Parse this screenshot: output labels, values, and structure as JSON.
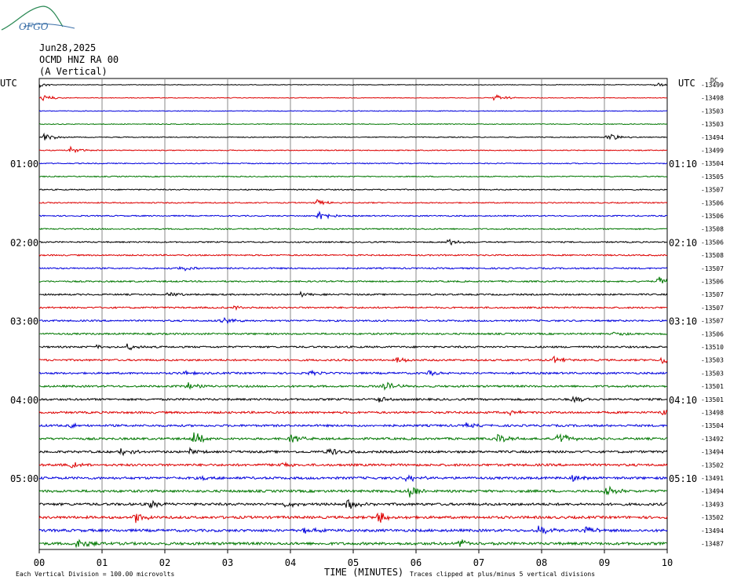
{
  "header": {
    "logo_text": "OFGO",
    "date": "Jun28,2025",
    "station": "OCMD HNZ RA 00",
    "component": "(A Vertical)"
  },
  "utc_left": "UTC",
  "utc_right": "UTC",
  "dc_label": "DC",
  "colors": {
    "black": "#000000",
    "red": "#dd0000",
    "blue": "#0000dd",
    "green": "#007700",
    "grid": "#888888",
    "logo": "#3a6fa8",
    "logo_swoosh": "#2e8b57"
  },
  "chart_data": {
    "type": "line",
    "title": "",
    "xlabel": "TIME (MINUTES)",
    "ylabel": "",
    "x_ticks": [
      "00",
      "01",
      "02",
      "03",
      "04",
      "05",
      "06",
      "07",
      "08",
      "09",
      "10"
    ],
    "xlim": [
      0,
      10
    ],
    "grid": true,
    "color_cycle": [
      "black",
      "red",
      "blue",
      "green"
    ],
    "left_time_labels": [
      {
        "row": 6,
        "label": "01:00"
      },
      {
        "row": 12,
        "label": "02:00"
      },
      {
        "row": 18,
        "label": "03:00"
      },
      {
        "row": 24,
        "label": "04:00"
      },
      {
        "row": 30,
        "label": "05:00"
      }
    ],
    "right_time_labels": [
      {
        "row": 6,
        "label": "01:10"
      },
      {
        "row": 12,
        "label": "02:10"
      },
      {
        "row": 18,
        "label": "03:10"
      },
      {
        "row": 24,
        "label": "04:10"
      },
      {
        "row": 30,
        "label": "05:10"
      }
    ],
    "dc_offsets": [
      "-13499",
      "-13498",
      "-13503",
      "-13503",
      "-13494",
      "-13499",
      "-13504",
      "-13505",
      "-13507",
      "-13506",
      "-13506",
      "-13508",
      "-13506",
      "-13508",
      "-13507",
      "-13506",
      "-13507",
      "-13507",
      "-13507",
      "-13506",
      "-13510",
      "-13503",
      "-13503",
      "-13501",
      "-13501",
      "-13498",
      "-13504",
      "-13492",
      "-13494",
      "-13502",
      "-13491",
      "-13494",
      "-13493",
      "-13502",
      "-13494",
      "-13487"
    ],
    "events": [
      {
        "row": 0,
        "x": 0.0,
        "amp": 3
      },
      {
        "row": 0,
        "x": 9.8,
        "amp": 3
      },
      {
        "row": 1,
        "x": 0.05,
        "amp": 4
      },
      {
        "row": 1,
        "x": 7.25,
        "amp": 5
      },
      {
        "row": 4,
        "x": 0.08,
        "amp": 5
      },
      {
        "row": 4,
        "x": 9.05,
        "amp": 6
      },
      {
        "row": 5,
        "x": 0.5,
        "amp": 4
      },
      {
        "row": 9,
        "x": 4.4,
        "amp": 5
      },
      {
        "row": 10,
        "x": 4.45,
        "amp": 8
      },
      {
        "row": 12,
        "x": 6.5,
        "amp": 5
      },
      {
        "row": 14,
        "x": 2.25,
        "amp": 4
      },
      {
        "row": 15,
        "x": 9.85,
        "amp": 6
      },
      {
        "row": 16,
        "x": 2.05,
        "amp": 4
      },
      {
        "row": 16,
        "x": 4.15,
        "amp": 3
      },
      {
        "row": 17,
        "x": 3.1,
        "amp": 3
      },
      {
        "row": 18,
        "x": 2.9,
        "amp": 5
      },
      {
        "row": 19,
        "x": 9.15,
        "amp": 3
      },
      {
        "row": 20,
        "x": 1.4,
        "amp": 4
      },
      {
        "row": 20,
        "x": 0.9,
        "amp": 3
      },
      {
        "row": 21,
        "x": 5.7,
        "amp": 4
      },
      {
        "row": 21,
        "x": 8.2,
        "amp": 5
      },
      {
        "row": 21,
        "x": 9.9,
        "amp": 5
      },
      {
        "row": 22,
        "x": 2.3,
        "amp": 3
      },
      {
        "row": 22,
        "x": 4.3,
        "amp": 3
      },
      {
        "row": 22,
        "x": 6.2,
        "amp": 3
      },
      {
        "row": 23,
        "x": 2.35,
        "amp": 5
      },
      {
        "row": 23,
        "x": 5.5,
        "amp": 6
      },
      {
        "row": 24,
        "x": 5.4,
        "amp": 4
      },
      {
        "row": 24,
        "x": 8.5,
        "amp": 5
      },
      {
        "row": 25,
        "x": 9.9,
        "amp": 5
      },
      {
        "row": 25,
        "x": 7.5,
        "amp": 3
      },
      {
        "row": 26,
        "x": 0.5,
        "amp": 3
      },
      {
        "row": 26,
        "x": 6.8,
        "amp": 3
      },
      {
        "row": 27,
        "x": 2.45,
        "amp": 9
      },
      {
        "row": 27,
        "x": 4.0,
        "amp": 6
      },
      {
        "row": 27,
        "x": 7.3,
        "amp": 6
      },
      {
        "row": 27,
        "x": 8.25,
        "amp": 10
      },
      {
        "row": 28,
        "x": 1.3,
        "amp": 5
      },
      {
        "row": 28,
        "x": 4.6,
        "amp": 6
      },
      {
        "row": 28,
        "x": 2.4,
        "amp": 4
      },
      {
        "row": 29,
        "x": 0.5,
        "amp": 4
      },
      {
        "row": 29,
        "x": 3.8,
        "amp": 4
      },
      {
        "row": 30,
        "x": 2.6,
        "amp": 3
      },
      {
        "row": 30,
        "x": 5.85,
        "amp": 6
      },
      {
        "row": 30,
        "x": 8.5,
        "amp": 4
      },
      {
        "row": 31,
        "x": 5.9,
        "amp": 8
      },
      {
        "row": 31,
        "x": 9.0,
        "amp": 9
      },
      {
        "row": 32,
        "x": 1.75,
        "amp": 5
      },
      {
        "row": 32,
        "x": 4.9,
        "amp": 7
      },
      {
        "row": 32,
        "x": 3.9,
        "amp": 4
      },
      {
        "row": 33,
        "x": 1.5,
        "amp": 8
      },
      {
        "row": 33,
        "x": 5.4,
        "amp": 10
      },
      {
        "row": 34,
        "x": 4.2,
        "amp": 5
      },
      {
        "row": 34,
        "x": 7.95,
        "amp": 8
      },
      {
        "row": 34,
        "x": 8.7,
        "amp": 6
      },
      {
        "row": 35,
        "x": 0.6,
        "amp": 8
      },
      {
        "row": 35,
        "x": 6.7,
        "amp": 6
      }
    ]
  },
  "footer": {
    "scale_note": "Each Vertical Division =  100.00 microvolts",
    "clip_note": "Traces clipped at plus/minus 5 vertical divisions"
  }
}
